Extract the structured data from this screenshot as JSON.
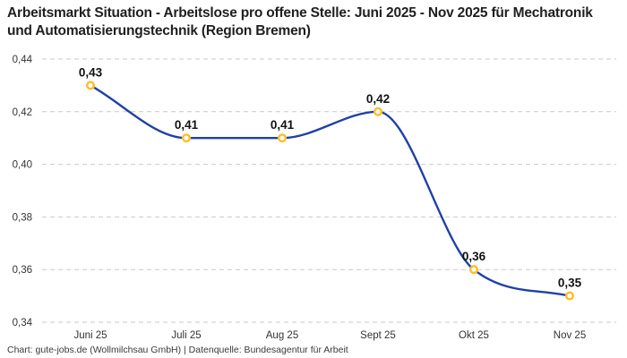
{
  "title": "Arbeitsmarkt Situation - Arbeitslose pro offene Stelle: Juni 2025 - Nov 2025 für Mechatronik und Automatisierungstechnik (Region Bremen)",
  "footer": {
    "credit": "Chart: gute-jobs.de (Wollmilchsau GmbH) | Datenquelle: Bundesagentur für Arbeit"
  },
  "chart_data": {
    "type": "line",
    "title": "Arbeitsmarkt Situation - Arbeitslose pro offene Stelle: Juni 2025 - Nov 2025 für Mechatronik und Automatisierungstechnik (Region Bremen)",
    "categories": [
      "Juni 25",
      "Juli 25",
      "Aug 25",
      "Sept 25",
      "Okt 25",
      "Nov 25"
    ],
    "values": [
      0.43,
      0.41,
      0.41,
      0.42,
      0.36,
      0.35
    ],
    "value_labels": [
      "0,43",
      "0,41",
      "0,41",
      "0,42",
      "0,36",
      "0,35"
    ],
    "ylim": [
      0.34,
      0.44
    ],
    "y_ticks": [
      0.44,
      0.42,
      0.4,
      0.38,
      0.36,
      0.34
    ],
    "y_tick_labels": [
      "0,44",
      "0,42",
      "0,40",
      "0,38",
      "0,36",
      "0,34"
    ],
    "xlabel": "",
    "ylabel": "",
    "grid": "dashed-horizontal",
    "legend": "none",
    "curve": "smooth-monotone",
    "colors": {
      "line": "#2040a8",
      "marker_ring": "#fcbf2e",
      "marker_fill": "#ffffff",
      "grid": "#c9c9c9",
      "value_label": "#111111",
      "tick_label": "#333333"
    }
  }
}
